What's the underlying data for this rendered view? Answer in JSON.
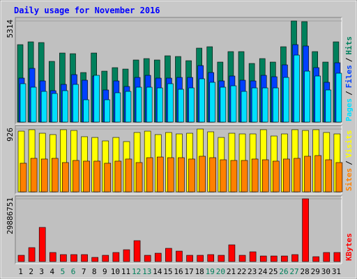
{
  "chart_data": [
    {
      "type": "bar",
      "title": "Daily usage for November 2016",
      "legend_separator": "/",
      "ylim": [
        0,
        5314
      ],
      "yticks": [
        5314
      ],
      "series": [
        {
          "name": "Hits",
          "color": "#00805c",
          "values": [
            4068,
            4215,
            4178,
            3189,
            3628,
            3592,
            2602,
            3628,
            2675,
            2859,
            2785,
            3262,
            3335,
            3262,
            3482,
            3445,
            3225,
            3885,
            3958,
            3152,
            3702,
            3702,
            3079,
            3335,
            3152,
            3958,
            5314,
            5278,
            3702,
            3152,
            4215
          ]
        },
        {
          "name": "Files",
          "color": "#0040ff",
          "values": [
            2309,
            2822,
            2162,
            1649,
            1979,
            2492,
            2199,
            2419,
            1686,
            2162,
            1869,
            2345,
            2455,
            2309,
            2309,
            2345,
            2345,
            2968,
            2602,
            2162,
            2419,
            2199,
            2162,
            2455,
            2382,
            3005,
            4068,
            3995,
            2859,
            2089,
            3115
          ]
        },
        {
          "name": "Pages",
          "color": "#00e0ff",
          "values": [
            2016,
            1832,
            1612,
            1502,
            1649,
            1979,
            1172,
            2455,
            1172,
            1539,
            1612,
            1832,
            1832,
            1795,
            2016,
            1722,
            1795,
            2272,
            2089,
            1832,
            1905,
            1612,
            1795,
            1795,
            1795,
            2345,
            3518,
            2675,
            2419,
            1686,
            2565
          ]
        }
      ]
    },
    {
      "type": "bar",
      "legend_separator": "/",
      "ylim": [
        0,
        926
      ],
      "yticks": [
        926
      ],
      "series": [
        {
          "name": "Visits",
          "color": "#ffff00",
          "values": [
            895,
            916,
            864,
            844,
            916,
            905,
            813,
            802,
            751,
            802,
            741,
            875,
            895,
            844,
            875,
            854,
            864,
            926,
            885,
            802,
            864,
            854,
            854,
            916,
            823,
            854,
            916,
            905,
            916,
            875,
            854
          ]
        },
        {
          "name": "Sites",
          "color": "#ff8000",
          "values": [
            422,
            494,
            484,
            494,
            432,
            463,
            453,
            453,
            422,
            453,
            484,
            432,
            504,
            514,
            504,
            504,
            484,
            525,
            504,
            473,
            463,
            463,
            484,
            473,
            453,
            484,
            494,
            525,
            535,
            473,
            432
          ]
        }
      ]
    },
    {
      "type": "bar",
      "ylim": [
        0,
        29886751
      ],
      "yticks": [
        29886751
      ],
      "categories": [
        "1",
        "2",
        "3",
        "4",
        "5",
        "6",
        "7",
        "8",
        "9",
        "10",
        "11",
        "12",
        "13",
        "14",
        "15",
        "16",
        "17",
        "18",
        "19",
        "20",
        "21",
        "22",
        "23",
        "24",
        "25",
        "26",
        "27",
        "28",
        "29",
        "30",
        "31"
      ],
      "category_colors": [
        "#000000",
        "#000000",
        "#000000",
        "#000000",
        "#00805c",
        "#00805c",
        "#000000",
        "#000000",
        "#000000",
        "#000000",
        "#000000",
        "#00805c",
        "#00805c",
        "#000000",
        "#000000",
        "#000000",
        "#000000",
        "#000000",
        "#00805c",
        "#00805c",
        "#000000",
        "#000000",
        "#000000",
        "#000000",
        "#000000",
        "#00805c",
        "#00805c",
        "#000000",
        "#000000",
        "#000000",
        "#000000"
      ],
      "series": [
        {
          "name": "KBytes",
          "color": "#ff0000",
          "values": [
            2988675,
            6641500,
            16271675,
            4317000,
            3320750,
            3320750,
            3320750,
            1992450,
            2988675,
            4317000,
            5645275,
            9962250,
            2988675,
            3984900,
            6309425,
            4981125,
            2988675,
            2988675,
            3320750,
            2988675,
            7969800,
            2988675,
            4649050,
            2656600,
            2656600,
            2656600,
            3320750,
            29886751,
            2324525,
            4317000,
            4317000
          ]
        }
      ]
    }
  ]
}
